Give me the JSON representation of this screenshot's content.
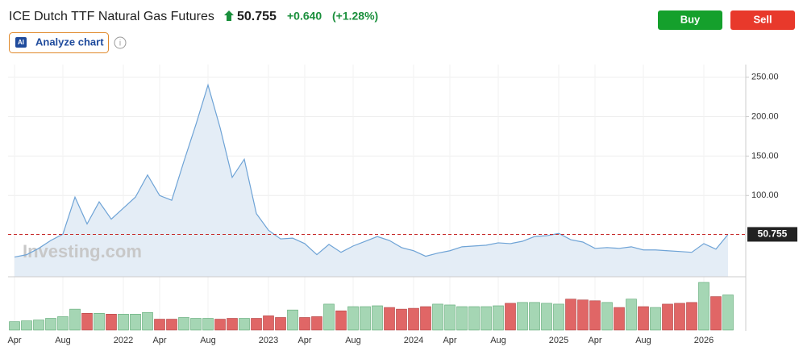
{
  "header": {
    "title": "ICE Dutch TTF Natural Gas Futures",
    "price": "50.755",
    "change": "+0.640",
    "change_pct": "(+1.28%)",
    "ai_badge": "AI",
    "analyze": "Analyze chart",
    "info": "i",
    "buy": "Buy",
    "sell": "Sell",
    "watermark": "Investing.com"
  },
  "chart_data": {
    "type": "line",
    "color": "#6ea3d6",
    "area_color": "#e4edf6",
    "price_line_color": "#c62828",
    "up_color": "#a5d6b4",
    "down_color": "#e06666",
    "categories": [
      "Apr",
      null,
      null,
      null,
      "Aug",
      null,
      null,
      null,
      null,
      "2022",
      null,
      null,
      "Apr",
      null,
      null,
      null,
      "Aug",
      null,
      null,
      null,
      null,
      "2023",
      null,
      null,
      "Apr",
      null,
      null,
      null,
      "Aug",
      null,
      null,
      null,
      null,
      "2024",
      null,
      null,
      "Apr",
      null,
      null,
      null,
      "Aug",
      null,
      null,
      null,
      null,
      "2025",
      null,
      null,
      "Apr",
      null,
      null,
      null,
      "Aug",
      null,
      null,
      null,
      null,
      "2026",
      null,
      null
    ],
    "values": [
      22,
      25,
      33,
      43,
      51,
      98,
      64,
      92,
      70,
      84,
      98,
      126,
      100,
      94,
      143,
      190,
      240,
      186,
      123,
      146,
      77,
      56,
      45,
      46,
      39,
      25,
      38,
      28,
      36,
      42,
      48,
      43,
      34,
      30,
      23,
      27,
      30,
      35,
      36,
      37,
      40,
      39,
      42,
      48,
      49,
      52,
      44,
      41,
      33,
      34,
      33,
      35,
      31,
      31,
      30,
      29,
      28,
      39,
      32,
      50.755
    ],
    "volumes": [
      10,
      11,
      12,
      14,
      16,
      25,
      20,
      20,
      19,
      19,
      19,
      21,
      13,
      13,
      15,
      14,
      14,
      13,
      14,
      14,
      14,
      17,
      15,
      24,
      15,
      16,
      31,
      23,
      28,
      28,
      29,
      27,
      25,
      26,
      28,
      31,
      30,
      28,
      28,
      28,
      29,
      32,
      33,
      33,
      32,
      31,
      37,
      36,
      35,
      33,
      27,
      37,
      28,
      27,
      31,
      32,
      33,
      57,
      40,
      42
    ],
    "ylim": [
      -3,
      266
    ],
    "yticks": [
      {
        "value": 100,
        "label": "100.00"
      },
      {
        "value": 150,
        "label": "150.00"
      },
      {
        "value": 200,
        "label": "200.00"
      },
      {
        "value": 250,
        "label": "250.00"
      }
    ],
    "grid": true
  }
}
